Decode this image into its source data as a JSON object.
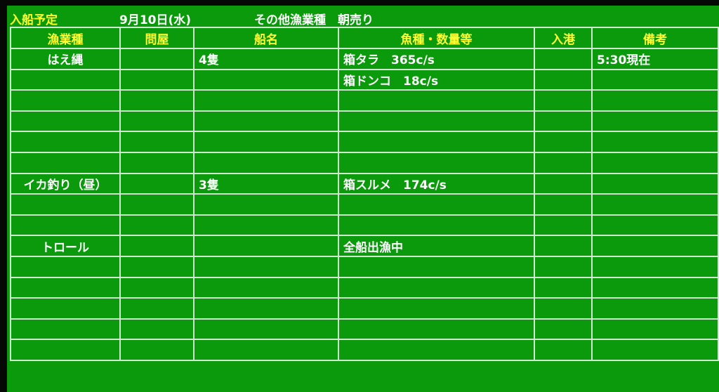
{
  "title": {
    "label": "入船予定",
    "date": "9月10日(水)",
    "category": "その他漁業種　朝売り"
  },
  "colors": {
    "background": "#0a9a0c",
    "header_text": "#ffff33",
    "body_text": "#ffffff",
    "grid": "#cfe8cf"
  },
  "columns": [
    "漁業種",
    "問屋",
    "船名",
    "魚種・数量等",
    "入港",
    "備考"
  ],
  "rows": [
    [
      "はえ縄",
      "",
      "4隻",
      "箱タラ　365c/s",
      "",
      "5:30現在"
    ],
    [
      "",
      "",
      "",
      "箱ドンコ　18c/s",
      "",
      ""
    ],
    [
      "",
      "",
      "",
      "",
      "",
      ""
    ],
    [
      "",
      "",
      "",
      "",
      "",
      ""
    ],
    [
      "",
      "",
      "",
      "",
      "",
      ""
    ],
    [
      "",
      "",
      "",
      "",
      "",
      ""
    ],
    [
      "イカ釣り（昼）",
      "",
      "3隻",
      "箱スルメ　174c/s",
      "",
      ""
    ],
    [
      "",
      "",
      "",
      "",
      "",
      ""
    ],
    [
      "",
      "",
      "",
      "",
      "",
      ""
    ],
    [
      "トロール",
      "",
      "",
      "全船出漁中",
      "",
      ""
    ],
    [
      "",
      "",
      "",
      "",
      "",
      ""
    ],
    [
      "",
      "",
      "",
      "",
      "",
      ""
    ],
    [
      "",
      "",
      "",
      "",
      "",
      ""
    ],
    [
      "",
      "",
      "",
      "",
      "",
      ""
    ],
    [
      "",
      "",
      "",
      "",
      "",
      ""
    ]
  ]
}
